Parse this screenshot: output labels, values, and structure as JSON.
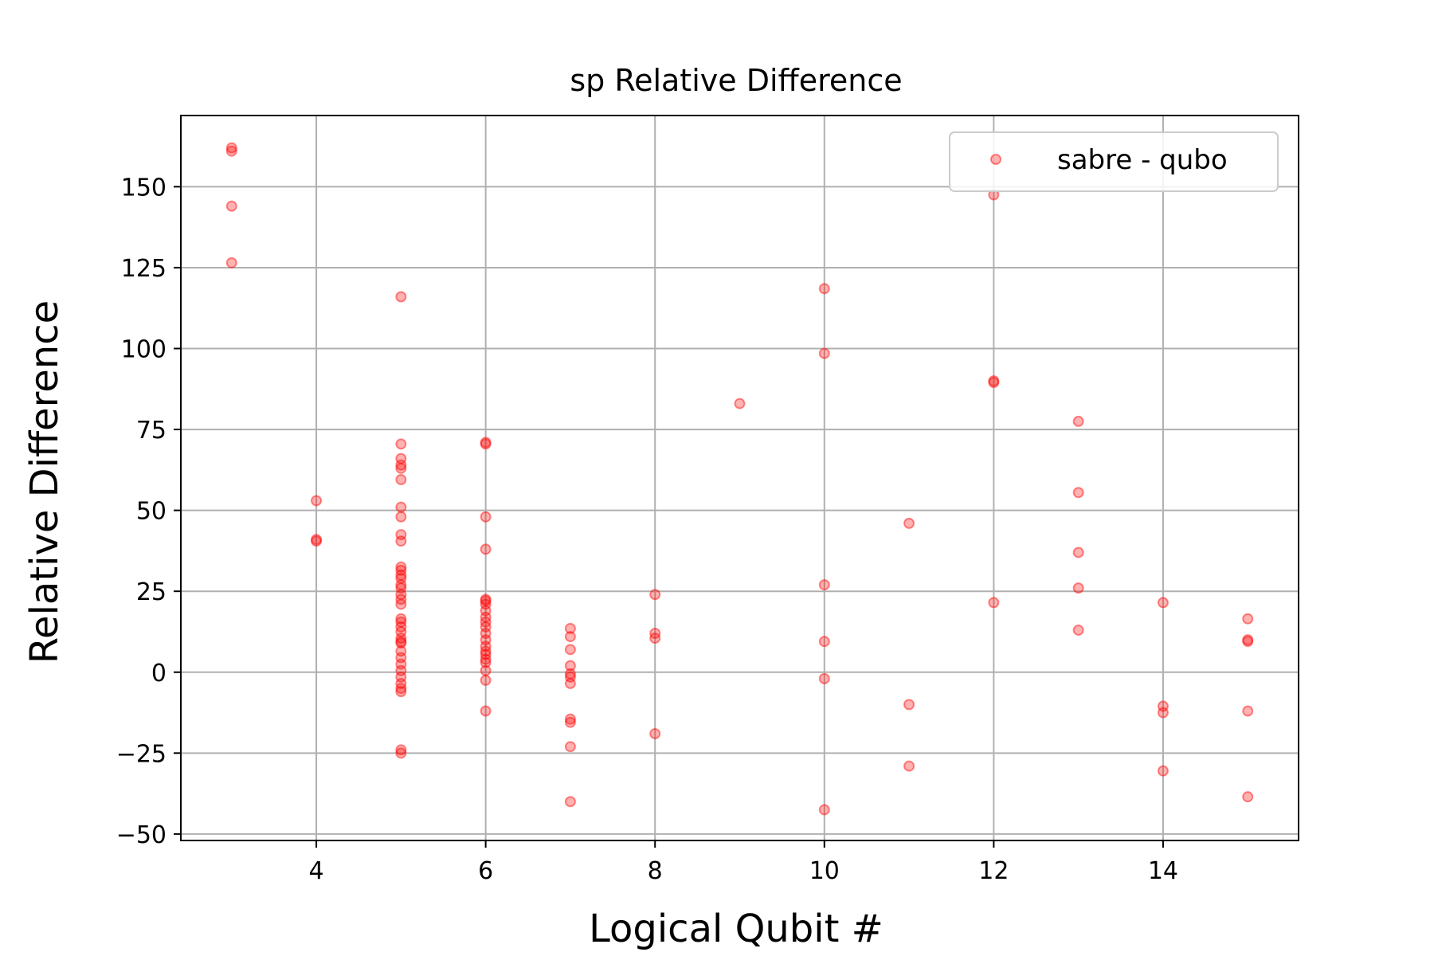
{
  "chart_data": {
    "type": "scatter",
    "title": "sp Relative Difference",
    "xlabel": "Logical Qubit #",
    "ylabel": "Relative Difference",
    "xlim": [
      2.4,
      15.6
    ],
    "ylim": [
      -52,
      172
    ],
    "xticks": [
      4,
      6,
      8,
      10,
      12,
      14
    ],
    "yticks": [
      -50,
      -25,
      0,
      25,
      50,
      75,
      100,
      125,
      150
    ],
    "ytick_labels": [
      "−50",
      "−25",
      "0",
      "25",
      "50",
      "75",
      "100",
      "125",
      "150"
    ],
    "grid": true,
    "legend_position": "top-right",
    "marker_color": "#ff0000",
    "series": [
      {
        "name": "sabre - qubo",
        "points": [
          [
            3,
            162
          ],
          [
            3,
            161
          ],
          [
            3,
            144
          ],
          [
            3,
            126.5
          ],
          [
            4,
            53
          ],
          [
            4,
            41
          ],
          [
            4,
            40.5
          ],
          [
            5,
            116
          ],
          [
            5,
            70.5
          ],
          [
            5,
            66
          ],
          [
            5,
            64
          ],
          [
            5,
            63
          ],
          [
            5,
            59.5
          ],
          [
            5,
            51
          ],
          [
            5,
            48
          ],
          [
            5,
            42.5
          ],
          [
            5,
            40.5
          ],
          [
            5,
            32.5
          ],
          [
            5,
            31.5
          ],
          [
            5,
            30
          ],
          [
            5,
            29
          ],
          [
            5,
            27
          ],
          [
            5,
            26
          ],
          [
            5,
            24
          ],
          [
            5,
            22.5
          ],
          [
            5,
            21
          ],
          [
            5,
            16.5
          ],
          [
            5,
            15.5
          ],
          [
            5,
            14
          ],
          [
            5,
            12.5
          ],
          [
            5,
            10.5
          ],
          [
            5,
            9.5
          ],
          [
            5,
            9
          ],
          [
            5,
            6.5
          ],
          [
            5,
            4.5
          ],
          [
            5,
            2.5
          ],
          [
            5,
            0.5
          ],
          [
            5,
            -1.5
          ],
          [
            5,
            -3.5
          ],
          [
            5,
            -5
          ],
          [
            5,
            -6
          ],
          [
            5,
            -24
          ],
          [
            5,
            -25
          ],
          [
            6,
            71
          ],
          [
            6,
            70.5
          ],
          [
            6,
            48
          ],
          [
            6,
            38
          ],
          [
            6,
            22.5
          ],
          [
            6,
            22
          ],
          [
            6,
            21
          ],
          [
            6,
            19
          ],
          [
            6,
            17
          ],
          [
            6,
            15.5
          ],
          [
            6,
            14
          ],
          [
            6,
            12
          ],
          [
            6,
            10
          ],
          [
            6,
            8
          ],
          [
            6,
            6.5
          ],
          [
            6,
            5.5
          ],
          [
            6,
            4
          ],
          [
            6,
            3
          ],
          [
            6,
            0.5
          ],
          [
            6,
            -2.5
          ],
          [
            6,
            -12
          ],
          [
            7,
            13.5
          ],
          [
            7,
            11
          ],
          [
            7,
            7
          ],
          [
            7,
            2
          ],
          [
            7,
            -0.5
          ],
          [
            7,
            -1.5
          ],
          [
            7,
            -3.5
          ],
          [
            7,
            -14.5
          ],
          [
            7,
            -15.5
          ],
          [
            7,
            -23
          ],
          [
            7,
            -40
          ],
          [
            8,
            24
          ],
          [
            8,
            12
          ],
          [
            8,
            10.5
          ],
          [
            8,
            -19
          ],
          [
            9,
            83
          ],
          [
            10,
            118.5
          ],
          [
            10,
            98.5
          ],
          [
            10,
            27
          ],
          [
            10,
            9.5
          ],
          [
            10,
            -2
          ],
          [
            10,
            -42.5
          ],
          [
            11,
            46
          ],
          [
            11,
            -10
          ],
          [
            11,
            -29
          ],
          [
            12,
            147.5
          ],
          [
            12,
            90
          ],
          [
            12,
            89.5
          ],
          [
            12,
            21.5
          ],
          [
            13,
            77.5
          ],
          [
            13,
            55.5
          ],
          [
            13,
            37
          ],
          [
            13,
            26
          ],
          [
            13,
            13
          ],
          [
            14,
            21.5
          ],
          [
            14,
            -10.5
          ],
          [
            14,
            -12.5
          ],
          [
            14,
            -30.5
          ],
          [
            15,
            16.5
          ],
          [
            15,
            10
          ],
          [
            15,
            9.5
          ],
          [
            15,
            -12
          ],
          [
            15,
            -38.5
          ]
        ]
      }
    ]
  }
}
